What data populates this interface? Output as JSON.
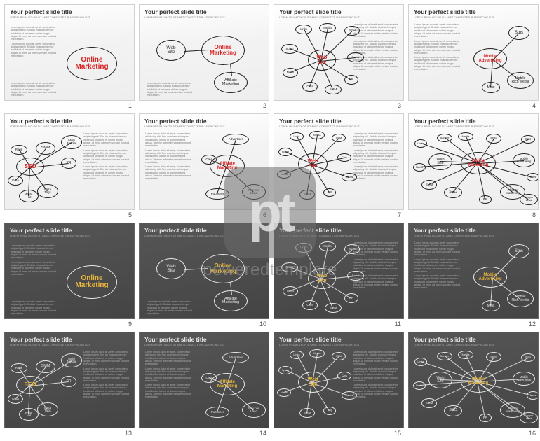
{
  "watermark": {
    "logo": "pt",
    "text": "poweredtemplate"
  },
  "common": {
    "slide_title": "Your perfect slide title",
    "lorem_short": "LOREM IPSUM DOLOR SIT AMET CONSECTETUR ADIPISCING ELIT",
    "lorem_block": "Lorem ipsum dolor sit amet, consectetur adipiscing elit. Sed do eiusmod tempor incididunt ut labore et dolore magna aliqua. Ut enim ad minim veniam nostrud exercitation.",
    "colors": {
      "accent_light": "#d62424",
      "accent_dark": "#e8b73d",
      "text_light": "#222222",
      "text_dark": "#e6e6e6",
      "bg_light": "#f3f3f3",
      "bg_dark": "#4d4d4d"
    }
  },
  "bubbles": {
    "online_marketing": "Online\nMarketing",
    "web_site": "Web\nSite",
    "affiliate_marketing": "Affiliate\nMarketing",
    "sms": "Sms",
    "mobile_adv": "Mobile\nAdvertising",
    "mobile_rich": "Mobile\nRich Media",
    "mms": "Mms",
    "seo": "SEO",
    "smm": "SMM",
    "pr": "PR",
    "rank": "Rank",
    "data": "Data",
    "white_hat": "White\nHat",
    "meta_tags": "Meta\nTags",
    "multi_media": "Multi\nMedia",
    "advertiser": "Advertiser",
    "publisher": "Publisher",
    "pay_per_lead": "Pay per\nLead",
    "cms": "Cms",
    "links": "Links",
    "spam": "Spam",
    "media": "Media",
    "sem": "SEM",
    "banner": "Banner",
    "news": "News",
    "social": "Social"
  },
  "slides": [
    {
      "num": "1",
      "variant": "light",
      "layout": "A"
    },
    {
      "num": "2",
      "variant": "light",
      "layout": "B"
    },
    {
      "num": "3",
      "variant": "light",
      "layout": "C"
    },
    {
      "num": "4",
      "variant": "light",
      "layout": "D"
    },
    {
      "num": "5",
      "variant": "light",
      "layout": "E"
    },
    {
      "num": "6",
      "variant": "light",
      "layout": "F"
    },
    {
      "num": "7",
      "variant": "light",
      "layout": "G"
    },
    {
      "num": "8",
      "variant": "light",
      "layout": "H"
    },
    {
      "num": "9",
      "variant": "dark",
      "layout": "A"
    },
    {
      "num": "10",
      "variant": "dark",
      "layout": "B"
    },
    {
      "num": "11",
      "variant": "dark",
      "layout": "C"
    },
    {
      "num": "12",
      "variant": "dark",
      "layout": "D"
    },
    {
      "num": "13",
      "variant": "dark",
      "layout": "E"
    },
    {
      "num": "14",
      "variant": "dark",
      "layout": "F"
    },
    {
      "num": "15",
      "variant": "dark",
      "layout": "G"
    },
    {
      "num": "16",
      "variant": "dark",
      "layout": "H"
    }
  ]
}
